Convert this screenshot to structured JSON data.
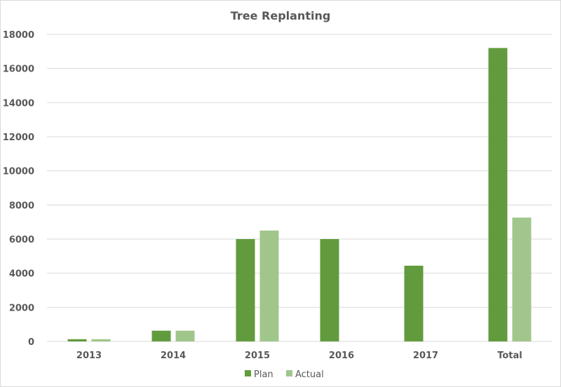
{
  "chart_data": {
    "type": "bar",
    "title": "Tree Replanting",
    "categories": [
      "2013",
      "2014",
      "2015",
      "2016",
      "2017",
      "Total"
    ],
    "series": [
      {
        "name": "Plan",
        "values": [
          130,
          630,
          6000,
          6000,
          4440,
          17200
        ],
        "color": "#629b3d"
      },
      {
        "name": "Actual",
        "values": [
          130,
          630,
          6500,
          0,
          0,
          7260
        ],
        "color": "#a0c68b"
      }
    ],
    "xlabel": "",
    "ylabel": "",
    "ylim": [
      0,
      18000
    ],
    "yticks": [
      "0",
      "2000",
      "4000",
      "6000",
      "8000",
      "10000",
      "12000",
      "14000",
      "16000",
      "18000"
    ],
    "grid": true,
    "legend": "bottom"
  }
}
